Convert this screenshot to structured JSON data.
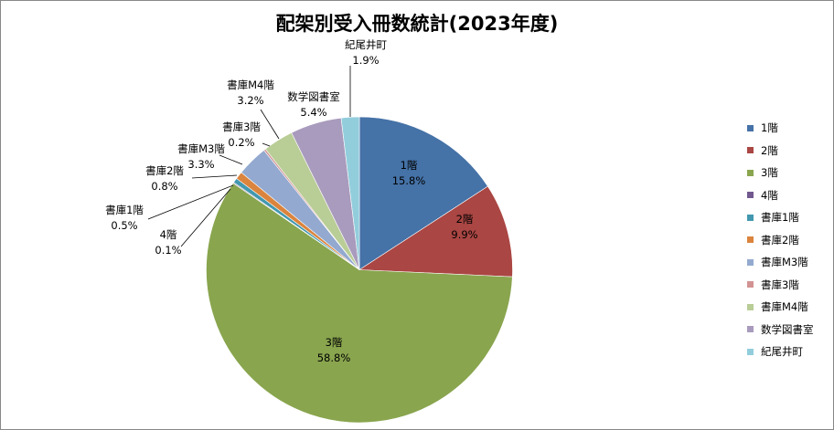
{
  "chart_data": {
    "type": "pie",
    "title": "配架別受入冊数統計(2023年度)",
    "legend_position": "right",
    "slices": [
      {
        "name": "1階",
        "value": 15.8,
        "label": "15.8%",
        "color": "#4572A7"
      },
      {
        "name": "2階",
        "value": 9.9,
        "label": "9.9%",
        "color": "#AA4643"
      },
      {
        "name": "3階",
        "value": 58.8,
        "label": "58.8%",
        "color": "#89A54E"
      },
      {
        "name": "4階",
        "value": 0.1,
        "label": "0.1%",
        "color": "#71588F"
      },
      {
        "name": "書庫1階",
        "value": 0.5,
        "label": "0.5%",
        "color": "#4198AF"
      },
      {
        "name": "書庫2階",
        "value": 0.8,
        "label": "0.8%",
        "color": "#DB843D"
      },
      {
        "name": "書庫M3階",
        "value": 3.3,
        "label": "3.3%",
        "color": "#93A9CF"
      },
      {
        "name": "書庫3階",
        "value": 0.2,
        "label": "0.2%",
        "color": "#D19392"
      },
      {
        "name": "書庫M4階",
        "value": 3.2,
        "label": "3.2%",
        "color": "#B9CD96"
      },
      {
        "name": "数学図書室",
        "value": 5.4,
        "label": "5.4%",
        "color": "#A99BBD"
      },
      {
        "name": "紀尾井町",
        "value": 1.9,
        "label": "1.9%",
        "color": "#92CDDC"
      }
    ]
  }
}
